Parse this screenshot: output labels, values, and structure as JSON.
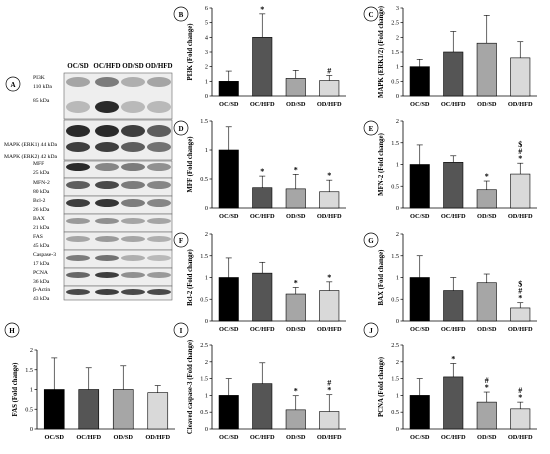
{
  "western_blot": {
    "letter": "A",
    "groups": [
      "OC/SD",
      "OC/HFD",
      "OD/SD",
      "OD/HFD"
    ],
    "bands": [
      {
        "lines": [
          "PI3K",
          "110 kDa"
        ]
      },
      {
        "lines": [
          "85 kDa"
        ]
      },
      {
        "lines": [
          "MAPK (ERK1) 44 kDa"
        ]
      },
      {
        "lines": [
          "MAPK (ERK2) 42 kDa"
        ]
      },
      {
        "lines": [
          "MFF",
          "25 kDa"
        ]
      },
      {
        "lines": [
          "MFN-2",
          "80 kDa"
        ]
      },
      {
        "lines": [
          "Bcl-2",
          "26 kDa"
        ]
      },
      {
        "lines": [
          "BAX",
          "21 kDa"
        ]
      },
      {
        "lines": [
          "FAS",
          "45 kDa"
        ]
      },
      {
        "lines": [
          "Caspase-3",
          "17 kDa"
        ]
      },
      {
        "lines": [
          "PCNA",
          "36 kDa"
        ]
      },
      {
        "lines": [
          "β-Actin",
          "43 kDa"
        ]
      }
    ]
  },
  "chart_data": [
    {
      "id": "B",
      "type": "bar",
      "ylabel": "PI3K (Fold change)",
      "categories": [
        "OC/SD",
        "OC/HFD",
        "OD/SD",
        "OD/HFD"
      ],
      "values": [
        1.0,
        4.0,
        1.2,
        1.05
      ],
      "errors": [
        0.7,
        1.6,
        0.55,
        0.35
      ],
      "ylim": [
        0,
        6
      ],
      "yticks": [
        "0",
        "1",
        "2",
        "3",
        "4",
        "5",
        "6"
      ],
      "marks": [
        [],
        [
          "*"
        ],
        [],
        [
          "#"
        ]
      ],
      "colors": [
        "#000000",
        "#555555",
        "#a6a6a6",
        "#d9d9d9"
      ]
    },
    {
      "id": "C",
      "type": "bar",
      "ylabel": "MAPK (ERK1/2) (Fold change)",
      "categories": [
        "OC/SD",
        "OC/HFD",
        "OD/SD",
        "OD/HFD"
      ],
      "values": [
        1.0,
        1.5,
        1.8,
        1.3
      ],
      "errors": [
        0.25,
        0.7,
        0.95,
        0.55
      ],
      "ylim": [
        0,
        3
      ],
      "yticks": [
        "0",
        "0.5",
        "1",
        "1.5",
        "2",
        "2.5",
        "3"
      ],
      "marks": [
        [],
        [],
        [],
        []
      ],
      "colors": [
        "#000000",
        "#555555",
        "#a6a6a6",
        "#d9d9d9"
      ]
    },
    {
      "id": "D",
      "type": "bar",
      "ylabel": "MFF (Fold change)",
      "categories": [
        "OC/SD",
        "OC/HFD",
        "OD/SD",
        "OD/HFD"
      ],
      "values": [
        1.0,
        0.35,
        0.33,
        0.28
      ],
      "errors": [
        0.4,
        0.2,
        0.25,
        0.2
      ],
      "ylim": [
        0,
        1.5
      ],
      "yticks": [
        "0",
        "0.5",
        "1",
        "1.5"
      ],
      "marks": [
        [],
        [
          "*"
        ],
        [
          "*"
        ],
        [
          "*"
        ]
      ],
      "colors": [
        "#000000",
        "#555555",
        "#a6a6a6",
        "#d9d9d9"
      ]
    },
    {
      "id": "E",
      "type": "bar",
      "ylabel": "MFN-2 (Fold change)",
      "categories": [
        "OC/SD",
        "OC/HFD",
        "OD/SD",
        "OD/HFD"
      ],
      "values": [
        1.0,
        1.05,
        0.42,
        0.78
      ],
      "errors": [
        0.45,
        0.15,
        0.2,
        0.25
      ],
      "ylim": [
        0,
        2
      ],
      "yticks": [
        "0",
        "0.5",
        "1",
        "1.5",
        "2"
      ],
      "marks": [
        [],
        [],
        [
          "*"
        ],
        [
          "$",
          "#",
          "*"
        ]
      ],
      "colors": [
        "#000000",
        "#555555",
        "#a6a6a6",
        "#d9d9d9"
      ]
    },
    {
      "id": "F",
      "type": "bar",
      "ylabel": "Bcl-2 (Fold change)",
      "categories": [
        "OC/SD",
        "OC/HFD",
        "OD/SD",
        "OD/HFD"
      ],
      "values": [
        1.0,
        1.1,
        0.62,
        0.7
      ],
      "errors": [
        0.45,
        0.25,
        0.15,
        0.2
      ],
      "ylim": [
        0,
        2
      ],
      "yticks": [
        "0",
        "0.5",
        "1",
        "1.5",
        "2"
      ],
      "marks": [
        [],
        [],
        [
          "*"
        ],
        [
          "*"
        ]
      ],
      "colors": [
        "#000000",
        "#555555",
        "#a6a6a6",
        "#d9d9d9"
      ]
    },
    {
      "id": "G",
      "type": "bar",
      "ylabel": "BAX (Fold change)",
      "categories": [
        "OC/SD",
        "OC/HFD",
        "OD/SD",
        "OD/HFD"
      ],
      "values": [
        1.0,
        0.7,
        0.88,
        0.3
      ],
      "errors": [
        0.5,
        0.3,
        0.2,
        0.12
      ],
      "ylim": [
        0,
        2
      ],
      "yticks": [
        "0",
        "0.5",
        "1",
        "1.5",
        "2"
      ],
      "marks": [
        [],
        [],
        [],
        [
          "$",
          "#",
          "*"
        ]
      ],
      "colors": [
        "#000000",
        "#555555",
        "#a6a6a6",
        "#d9d9d9"
      ]
    },
    {
      "id": "H",
      "type": "bar",
      "ylabel": "FAS (Fold change)",
      "categories": [
        "OC/SD",
        "OC/HFD",
        "OD/SD",
        "OD/HFD"
      ],
      "values": [
        1.0,
        1.0,
        1.0,
        0.92
      ],
      "errors": [
        0.8,
        0.55,
        0.6,
        0.18
      ],
      "ylim": [
        0,
        2
      ],
      "yticks": [
        "0",
        "0.5",
        "1",
        "1.5",
        "2"
      ],
      "marks": [
        [],
        [],
        [],
        []
      ],
      "colors": [
        "#000000",
        "#555555",
        "#a6a6a6",
        "#d9d9d9"
      ]
    },
    {
      "id": "I",
      "type": "bar",
      "ylabel": "Cleaved caspase-3 (Fold change)",
      "categories": [
        "OC/SD",
        "OC/HFD",
        "OD/SD",
        "OD/HFD"
      ],
      "values": [
        1.0,
        1.35,
        0.57,
        0.52
      ],
      "errors": [
        0.5,
        0.62,
        0.42,
        0.5
      ],
      "ylim": [
        0,
        2.5
      ],
      "yticks": [
        "0",
        "0.5",
        "1",
        "1.5",
        "2",
        "2.5"
      ],
      "marks": [
        [],
        [],
        [
          "*"
        ],
        [
          "#",
          "*"
        ]
      ],
      "colors": [
        "#000000",
        "#555555",
        "#a6a6a6",
        "#d9d9d9"
      ]
    },
    {
      "id": "J",
      "type": "bar",
      "ylabel": "PCNA (Fold change)",
      "categories": [
        "OC/SD",
        "OC/HFD",
        "OD/SD",
        "OD/HFD"
      ],
      "values": [
        1.0,
        1.55,
        0.8,
        0.6
      ],
      "errors": [
        0.5,
        0.4,
        0.3,
        0.2
      ],
      "ylim": [
        0,
        2.5
      ],
      "yticks": [
        "0",
        "0.5",
        "1",
        "1.5",
        "2",
        "2.5"
      ],
      "marks": [
        [],
        [
          "*"
        ],
        [
          "#",
          "*"
        ],
        [
          "#",
          "*"
        ]
      ],
      "colors": [
        "#000000",
        "#555555",
        "#a6a6a6",
        "#d9d9d9"
      ]
    }
  ]
}
